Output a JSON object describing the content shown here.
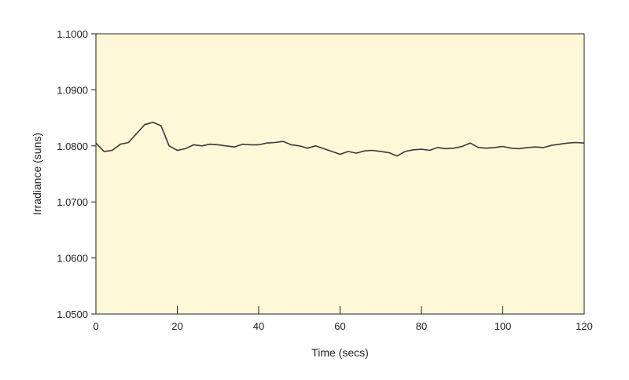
{
  "chart_data": {
    "type": "line",
    "title": "",
    "xlabel": "Time (secs)",
    "ylabel": "Irradiance (suns)",
    "xlim": [
      0,
      120
    ],
    "ylim": [
      1.05,
      1.1
    ],
    "x_ticks": [
      0,
      20,
      40,
      60,
      80,
      100,
      120
    ],
    "x_tick_labels": [
      "0",
      "20",
      "40",
      "60",
      "80",
      "100",
      "120"
    ],
    "y_ticks": [
      1.05,
      1.06,
      1.07,
      1.08,
      1.09,
      1.1
    ],
    "y_tick_labels": [
      "1.0500",
      "1.0600",
      "1.0700",
      "1.0800",
      "1.0900",
      "1.1000"
    ],
    "grid": false,
    "legend": "none",
    "colors": {
      "plot_background": "#FEF8D8",
      "line": "#3a3a3a",
      "axis": "#222222"
    },
    "series": [
      {
        "x": [
          0,
          2,
          4,
          6,
          8,
          10,
          12,
          14,
          16,
          18,
          20,
          22,
          24,
          26,
          28,
          30,
          32,
          34,
          36,
          38,
          40,
          42,
          44,
          46,
          48,
          50,
          52,
          54,
          56,
          58,
          60,
          62,
          64,
          66,
          68,
          70,
          72,
          74,
          76,
          78,
          80,
          82,
          84,
          86,
          88,
          90,
          92,
          94,
          96,
          98,
          100,
          102,
          104,
          106,
          108,
          110,
          112,
          114,
          116,
          118,
          120
        ],
        "values": [
          1.0805,
          1.079,
          1.0792,
          1.0803,
          1.0806,
          1.0822,
          1.0838,
          1.0842,
          1.0836,
          1.08,
          1.0792,
          1.0795,
          1.0802,
          1.08,
          1.0803,
          1.0802,
          1.08,
          1.0798,
          1.0803,
          1.0802,
          1.0802,
          1.0805,
          1.0806,
          1.0808,
          1.0802,
          1.08,
          1.0796,
          1.08,
          1.0795,
          1.079,
          1.0785,
          1.079,
          1.0787,
          1.0791,
          1.0792,
          1.079,
          1.0788,
          1.0782,
          1.079,
          1.0793,
          1.0794,
          1.0792,
          1.0797,
          1.0795,
          1.0796,
          1.0799,
          1.0805,
          1.0797,
          1.0796,
          1.0797,
          1.0799,
          1.0796,
          1.0795,
          1.0797,
          1.0798,
          1.0797,
          1.0801,
          1.0803,
          1.0805,
          1.0806,
          1.0805
        ]
      }
    ]
  }
}
